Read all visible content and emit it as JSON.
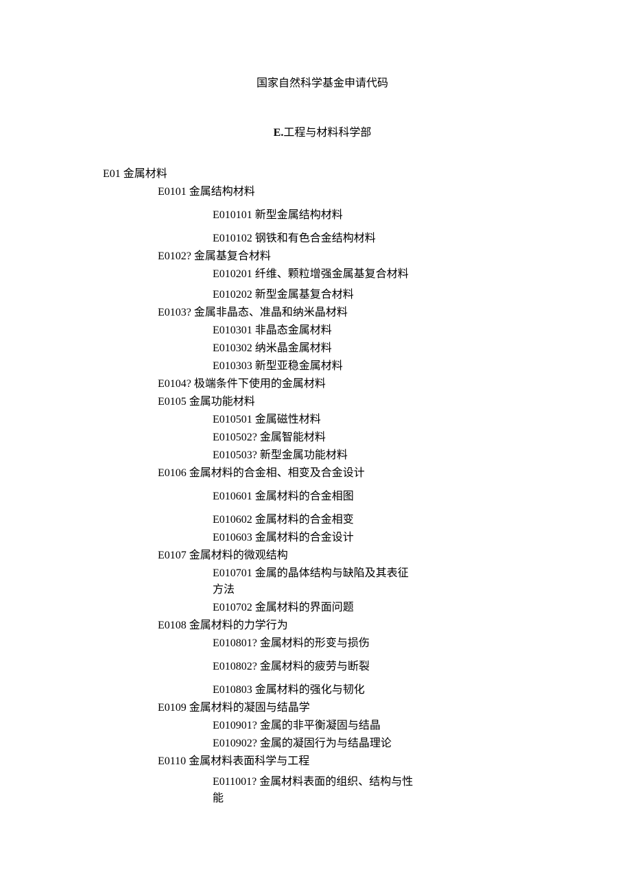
{
  "title": "国家自然科学基金申请代码",
  "section_prefix": "E.",
  "section_heading": "工程与材料科学部",
  "tree": {
    "code": "E01",
    "label": "金属材料",
    "children": [
      {
        "code": "E0101",
        "label": "金属结构材料",
        "gap_after": "md",
        "children": [
          {
            "code": "E010101",
            "label": "新型金属结构材料",
            "gap_after": "md"
          },
          {
            "code": "E010102",
            "label": "钢铁和有色合金结构材料"
          }
        ]
      },
      {
        "code": "E0102?",
        "label": "金属基复合材料",
        "children": [
          {
            "code": "E010201",
            "label": "纤维、颗粒增强金属基复合材料",
            "gap_after": "sm"
          },
          {
            "code": "E010202",
            "label": "新型金属基复合材料"
          }
        ]
      },
      {
        "code": "E0103?",
        "label": "金属非晶态、准晶和纳米晶材料",
        "children": [
          {
            "code": "E010301",
            "label": "非晶态金属材料"
          },
          {
            "code": "E010302",
            "label": "纳米晶金属材料"
          },
          {
            "code": "E010303",
            "label": "新型亚稳金属材料"
          }
        ]
      },
      {
        "code": "E0104?",
        "label": "极端条件下使用的金属材料",
        "children": []
      },
      {
        "code": "E0105",
        "label": "金属功能材料",
        "children": [
          {
            "code": "E010501",
            "label": "金属磁性材料"
          },
          {
            "code": "E010502?",
            "label": "金属智能材料"
          },
          {
            "code": "E010503?",
            "label": "新型金属功能材料"
          }
        ]
      },
      {
        "code": "E0106",
        "label": "金属材料的合金相、相变及合金设计",
        "gap_after": "md",
        "children": [
          {
            "code": "E010601",
            "label": "金属材料的合金相图",
            "gap_after": "md"
          },
          {
            "code": "E010602",
            "label": "金属材料的合金相变"
          },
          {
            "code": "E010603",
            "label": "金属材料的合金设计"
          }
        ]
      },
      {
        "code": "E0107",
        "label": "金属材料的微观结构",
        "children": [
          {
            "code": "E010701",
            "label": "金属的晶体结构与缺陷及其表征方法"
          },
          {
            "code": "E010702",
            "label": "金属材料的界面问题"
          }
        ]
      },
      {
        "code": "E0108",
        "label": "金属材料的力学行为",
        "children": [
          {
            "code": "E010801?",
            "label": "金属材料的形变与损伤",
            "gap_after": "md"
          },
          {
            "code": "E010802?",
            "label": "金属材料的疲劳与断裂",
            "gap_after": "md"
          },
          {
            "code": "E010803",
            "label": "金属材料的强化与韧化"
          }
        ]
      },
      {
        "code": "E0109",
        "label": "金属材料的凝固与结晶学",
        "children": [
          {
            "code": "E010901?",
            "label": "金属的非平衡凝固与结晶"
          },
          {
            "code": "E010902?",
            "label": "金属的凝固行为与结晶理论"
          }
        ]
      },
      {
        "code": "E0110",
        "label": "金属材料表面科学与工程",
        "gap_after": "sm",
        "children": [
          {
            "code": "E011001?",
            "label": "金属材料表面的组织、结构与性能"
          }
        ]
      }
    ]
  }
}
